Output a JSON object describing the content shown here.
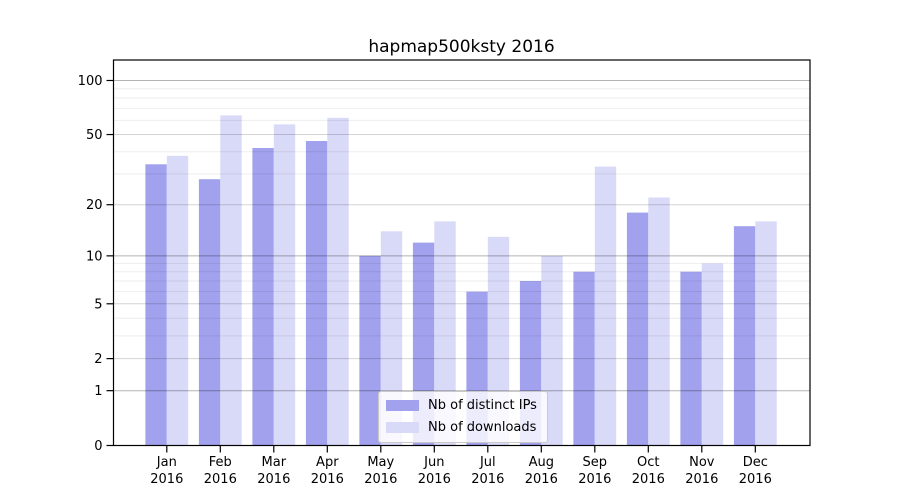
{
  "title": "hapmap500ksty 2016",
  "chart_data": {
    "type": "bar",
    "title": "hapmap500ksty 2016",
    "categories": [
      "Jan",
      "Feb",
      "Mar",
      "Apr",
      "May",
      "Jun",
      "Jul",
      "Aug",
      "Sep",
      "Oct",
      "Nov",
      "Dec"
    ],
    "category_year_line": "2016",
    "series": [
      {
        "name": "Nb of distinct IPs",
        "color": "#a1a1ee",
        "values": [
          34,
          28,
          42,
          46,
          10,
          12,
          6,
          7,
          8,
          18,
          8,
          15
        ]
      },
      {
        "name": "Nb of downloads",
        "color": "#d9d9f8",
        "values": [
          38,
          64,
          57,
          62,
          14,
          16,
          13,
          10,
          33,
          22,
          9,
          16
        ]
      }
    ],
    "yscale": "log10(value+1), 0 at baseline",
    "ytick_labels": [
      "0",
      "1",
      "2",
      "5",
      "10",
      "20",
      "50",
      "100"
    ],
    "yticks": [
      0,
      1,
      2,
      5,
      10,
      20,
      50,
      100
    ],
    "ylim": [
      0,
      131
    ],
    "xlabel": "",
    "ylabel": "",
    "grid": "both",
    "legend_position": "lower center"
  },
  "colors": {
    "bar_distinct_ips": "#a1a1ee",
    "bar_downloads": "#d9d9f8",
    "grid_major": "rgba(0,0,0,0.30)",
    "grid_labeled": "rgba(0,0,0,0.17)",
    "grid_minor": "rgba(0,0,0,0.07)",
    "axis": "#000000",
    "background": "#ffffff"
  }
}
